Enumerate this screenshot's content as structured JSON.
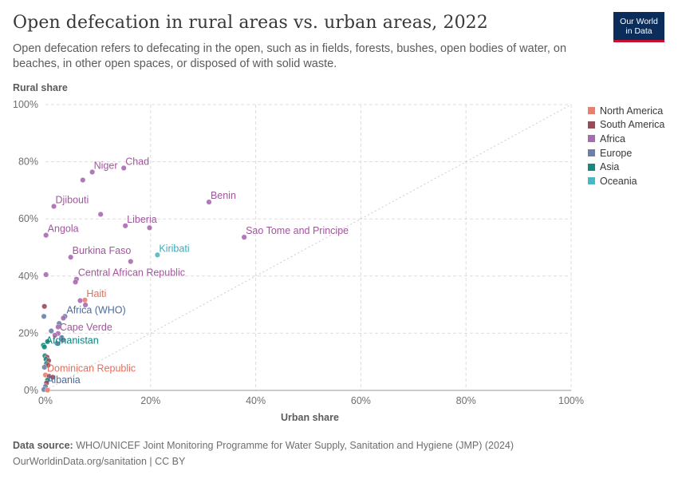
{
  "header": {
    "title": "Open defecation in rural areas vs. urban areas, 2022",
    "subtitle": "Open defecation refers to defecating in the open, such as in fields, forests, bushes, open bodies of water, on beaches, in other open spaces, or disposed of with solid waste.",
    "logo_line1": "Our World",
    "logo_line2": "in Data"
  },
  "footer": {
    "source_label": "Data source:",
    "source_text": " WHO/UNICEF Joint Monitoring Programme for Water Supply, Sanitation and Hygiene (JMP) (2024)",
    "url": "OurWorldinData.org/sanitation | CC BY"
  },
  "colors": {
    "North America": "#e56e5a",
    "South America": "#a2559c",
    "Africa": "#a2559c",
    "Europe": "#4c6a9c",
    "Asia": "#00847e",
    "Oceania": "#38aaba"
  },
  "chart_data": {
    "type": "scatter",
    "xlabel": "Urban share",
    "ylabel": "Rural share",
    "xlim": [
      0,
      100
    ],
    "ylim": [
      0,
      100
    ],
    "x_ticks": [
      "0%",
      "20%",
      "40%",
      "60%",
      "80%",
      "100%"
    ],
    "y_ticks": [
      "0%",
      "20%",
      "40%",
      "60%",
      "80%",
      "100%"
    ],
    "grid": true,
    "diagonal_reference": true,
    "legend_position": "right",
    "legend": [
      {
        "name": "North America",
        "color": "#e8806e"
      },
      {
        "name": "South America",
        "color": "#9a4a58"
      },
      {
        "name": "Africa",
        "color": "#a86ab0"
      },
      {
        "name": "Europe",
        "color": "#6b80a8"
      },
      {
        "name": "Asia",
        "color": "#18887e"
      },
      {
        "name": "Oceania",
        "color": "#4ab8c4"
      }
    ],
    "points": [
      {
        "label": "Chad",
        "x": 14.9,
        "y": 77.8,
        "region": "Africa"
      },
      {
        "label": "Niger",
        "x": 8.9,
        "y": 76.4,
        "region": "Africa"
      },
      {
        "label": "",
        "x": 7.1,
        "y": 73.6,
        "region": "Africa"
      },
      {
        "label": "Djibouti",
        "x": 1.6,
        "y": 64.4,
        "region": "Africa"
      },
      {
        "label": "Benin",
        "x": 31.1,
        "y": 65.9,
        "region": "Africa"
      },
      {
        "label": "",
        "x": 10.5,
        "y": 61.6,
        "region": "Africa"
      },
      {
        "label": "Liberia",
        "x": 15.2,
        "y": 57.6,
        "region": "Africa"
      },
      {
        "label": "",
        "x": 19.8,
        "y": 56.9,
        "region": "Africa"
      },
      {
        "label": "Angola",
        "x": 0.1,
        "y": 54.3,
        "region": "Africa"
      },
      {
        "label": "Sao Tome and Principe",
        "x": 37.8,
        "y": 53.6,
        "region": "Africa"
      },
      {
        "label": "Kiribati",
        "x": 21.3,
        "y": 47.4,
        "region": "Oceania"
      },
      {
        "label": "Burkina Faso",
        "x": 4.8,
        "y": 46.6,
        "region": "Africa"
      },
      {
        "label": "",
        "x": 16.2,
        "y": 45.1,
        "region": "Africa"
      },
      {
        "label": "",
        "x": 0.1,
        "y": 40.5,
        "region": "Africa"
      },
      {
        "label": "Central African Republic",
        "x": 5.9,
        "y": 38.9,
        "region": "Africa"
      },
      {
        "label": "",
        "x": 5.7,
        "y": 37.9,
        "region": "Africa"
      },
      {
        "label": "Haiti",
        "x": 7.5,
        "y": 31.6,
        "region": "North America"
      },
      {
        "label": "",
        "x": 6.6,
        "y": 31.4,
        "region": "Africa"
      },
      {
        "label": "",
        "x": 7.6,
        "y": 29.9,
        "region": "Africa"
      },
      {
        "label": "",
        "x": -0.2,
        "y": 29.4,
        "region": "South America"
      },
      {
        "label": "Africa (WHO)",
        "x": 3.7,
        "y": 25.9,
        "region": "Europe"
      },
      {
        "label": "",
        "x": -0.3,
        "y": 25.9,
        "region": "Europe"
      },
      {
        "label": "",
        "x": 3.4,
        "y": 25.3,
        "region": "Africa"
      },
      {
        "label": "",
        "x": 2.6,
        "y": 23.4,
        "region": "Europe"
      },
      {
        "label": "",
        "x": 2.4,
        "y": 22.2,
        "region": "Africa"
      },
      {
        "label": "",
        "x": 1.1,
        "y": 20.8,
        "region": "Europe"
      },
      {
        "label": "Cape Verde",
        "x": 2.4,
        "y": 19.9,
        "region": "Africa"
      },
      {
        "label": "",
        "x": 1.8,
        "y": 19.3,
        "region": "Africa"
      },
      {
        "label": "",
        "x": 3.1,
        "y": 18.5,
        "region": "Europe"
      },
      {
        "label": "",
        "x": 3.3,
        "y": 17.6,
        "region": "Europe"
      },
      {
        "label": "",
        "x": 0.4,
        "y": 17.1,
        "region": "Asia"
      },
      {
        "label": "",
        "x": 2.2,
        "y": 16.5,
        "region": "Europe"
      },
      {
        "label": "",
        "x": -0.4,
        "y": 15.8,
        "region": "Asia"
      },
      {
        "label": "Afghanistan",
        "x": -0.2,
        "y": 15.2,
        "region": "Asia"
      },
      {
        "label": "",
        "x": -0.1,
        "y": 12.1,
        "region": "Asia"
      },
      {
        "label": "",
        "x": 0.3,
        "y": 11.6,
        "region": "South America"
      },
      {
        "label": "",
        "x": 0.1,
        "y": 10.9,
        "region": "Asia"
      },
      {
        "label": "",
        "x": 0.6,
        "y": 10.4,
        "region": "South America"
      },
      {
        "label": "",
        "x": 0.2,
        "y": 9.4,
        "region": "Asia"
      },
      {
        "label": "",
        "x": 0.5,
        "y": 8.8,
        "region": "South America"
      },
      {
        "label": "",
        "x": -0.2,
        "y": 8.1,
        "region": "Europe"
      },
      {
        "label": "Dominican Republic",
        "x": 0.0,
        "y": 5.4,
        "region": "North America"
      },
      {
        "label": "",
        "x": 0.7,
        "y": 4.9,
        "region": "South America"
      },
      {
        "label": "",
        "x": 1.4,
        "y": 4.6,
        "region": "South America"
      },
      {
        "label": "",
        "x": 0.4,
        "y": 3.6,
        "region": "Asia"
      },
      {
        "label": "",
        "x": 0.2,
        "y": 2.6,
        "region": "South America"
      },
      {
        "label": "Albania",
        "x": 0.0,
        "y": 1.4,
        "region": "Europe"
      },
      {
        "label": "",
        "x": -0.3,
        "y": 0.3,
        "region": "Europe"
      },
      {
        "label": "",
        "x": 0.4,
        "y": 0.1,
        "region": "North America"
      }
    ]
  }
}
